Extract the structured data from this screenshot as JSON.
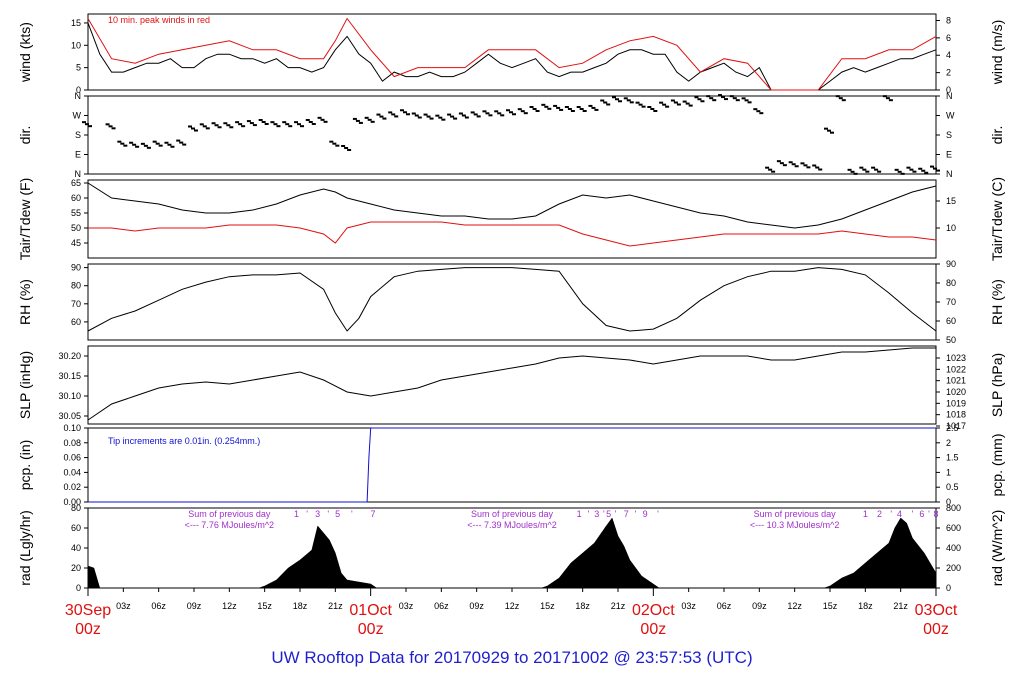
{
  "footer_title": "UW Rooftop Data for 20170929  to  20171002 @ 23:57:53  (UTC)",
  "colors": {
    "black": "#000000",
    "red": "#e01010",
    "blue": "#1010d0",
    "purple": "#a030c8",
    "date": "#e01010"
  },
  "x_axis": {
    "hour_ticks": [
      "03z",
      "06z",
      "09z",
      "12z",
      "15z",
      "18z",
      "21z",
      "03z",
      "06z",
      "09z",
      "12z",
      "15z",
      "18z",
      "21z",
      "03z",
      "06z",
      "09z",
      "12z",
      "15z",
      "18z",
      "21z"
    ],
    "hour_positions_h": [
      3,
      6,
      9,
      12,
      15,
      18,
      21,
      27,
      30,
      33,
      36,
      39,
      42,
      45,
      51,
      54,
      57,
      60,
      63,
      66,
      69
    ],
    "day_labels": [
      {
        "date": "30Sep",
        "time": "00z",
        "h": 0
      },
      {
        "date": "01Oct",
        "time": "00z",
        "h": 24
      },
      {
        "date": "02Oct",
        "time": "00z",
        "h": 48
      },
      {
        "date": "03Oct",
        "time": "00z",
        "h": 72
      }
    ],
    "range_h": [
      0,
      72
    ]
  },
  "chart_data": [
    {
      "type": "line",
      "panel": "wind",
      "ylabel": "wind (kts)",
      "ylabel_right": "wind (m/s)",
      "ylim": [
        0,
        17
      ],
      "yticks": [
        0,
        5,
        10,
        15
      ],
      "yticks_right": [
        0,
        2,
        4,
        6,
        8
      ],
      "annotation": "10 min. peak winds in red",
      "series": [
        {
          "color": "black",
          "x": [
            0,
            1,
            2,
            3,
            4,
            5,
            6,
            7,
            8,
            9,
            10,
            11,
            12,
            13,
            14,
            15,
            16,
            17,
            18,
            19,
            20,
            21,
            22,
            23,
            24,
            25,
            26,
            27,
            28,
            29,
            30,
            31,
            32,
            33,
            34,
            35,
            36,
            37,
            38,
            39,
            40,
            41,
            42,
            43,
            44,
            45,
            46,
            47,
            48,
            49,
            50,
            51,
            52,
            53,
            54,
            55,
            56,
            57,
            58,
            59,
            60,
            61,
            62,
            63,
            64,
            65,
            66,
            67,
            68,
            69,
            70,
            71,
            72
          ],
          "values": [
            15,
            8,
            4,
            4,
            5,
            6,
            6,
            7,
            5,
            5,
            7,
            8,
            8,
            7,
            7,
            6,
            7,
            5,
            5,
            4,
            5,
            9,
            12,
            8,
            6,
            2,
            4,
            3,
            3,
            4,
            3,
            3,
            4,
            6,
            8,
            6,
            5,
            6,
            7,
            4,
            3,
            4,
            4,
            5,
            6,
            8,
            9,
            9,
            8,
            8,
            4,
            2,
            4,
            5,
            6,
            4,
            3,
            5,
            0,
            0,
            0,
            0,
            0,
            2,
            4,
            5,
            4,
            5,
            6,
            7,
            7,
            8,
            9
          ]
        },
        {
          "name": "10 min. peak winds",
          "color": "red",
          "x": [
            0,
            2,
            4,
            6,
            8,
            10,
            12,
            14,
            16,
            18,
            20,
            21,
            22,
            24,
            26,
            28,
            30,
            32,
            34,
            36,
            38,
            40,
            42,
            44,
            46,
            48,
            50,
            52,
            54,
            56,
            58,
            60,
            62,
            64,
            66,
            68,
            70,
            72
          ],
          "values": [
            16,
            7,
            6,
            8,
            9,
            10,
            11,
            9,
            9,
            7,
            7,
            11,
            16,
            9,
            3,
            5,
            5,
            5,
            9,
            9,
            9,
            5,
            6,
            9,
            11,
            12,
            10,
            4,
            7,
            6,
            0,
            0,
            0,
            7,
            7,
            9,
            9,
            12
          ]
        }
      ]
    },
    {
      "type": "scatter",
      "panel": "dir",
      "ylabel": "dir.",
      "ylabel_right": "dir.",
      "ylim": [
        0,
        360
      ],
      "yticks_labels": [
        "N",
        "E",
        "S",
        "W",
        "N"
      ],
      "yticks_values": [
        0,
        90,
        180,
        270,
        360
      ],
      "x": [
        0,
        2,
        3,
        4,
        5,
        6,
        7,
        8,
        9,
        10,
        11,
        12,
        13,
        14,
        15,
        16,
        17,
        18,
        19,
        20,
        21,
        22,
        23,
        24,
        25,
        26,
        27,
        28,
        29,
        30,
        31,
        32,
        33,
        34,
        35,
        36,
        37,
        38,
        39,
        40,
        41,
        42,
        43,
        44,
        45,
        46,
        47,
        48,
        49,
        50,
        51,
        52,
        53,
        54,
        55,
        56,
        57,
        58,
        59,
        60,
        61,
        62,
        63,
        64,
        65,
        66,
        67,
        68,
        69,
        70,
        71,
        72
      ],
      "values": [
        230,
        220,
        140,
        135,
        130,
        140,
        135,
        145,
        210,
        220,
        225,
        225,
        230,
        235,
        240,
        230,
        230,
        230,
        240,
        250,
        140,
        120,
        245,
        250,
        265,
        275,
        285,
        270,
        265,
        260,
        265,
        270,
        275,
        280,
        280,
        285,
        290,
        300,
        310,
        305,
        300,
        300,
        305,
        330,
        345,
        340,
        320,
        300,
        320,
        330,
        325,
        345,
        350,
        355,
        350,
        340,
        290,
        20,
        50,
        45,
        40,
        30,
        200,
        350,
        10,
        20,
        20,
        350,
        10,
        20,
        15,
        25
      ]
    },
    {
      "type": "line",
      "panel": "temp",
      "ylabel": "Tair/Tdew (F)",
      "ylabel_right": "Tair/Tdew (C)",
      "ylim": [
        40,
        66
      ],
      "yticks": [
        45,
        50,
        55,
        60,
        65
      ],
      "yticks_right": [
        10,
        15
      ],
      "series": [
        {
          "name": "Tair",
          "color": "black",
          "x": [
            0,
            2,
            4,
            6,
            8,
            10,
            12,
            14,
            16,
            18,
            20,
            21,
            22,
            24,
            26,
            28,
            30,
            32,
            34,
            36,
            38,
            40,
            42,
            44,
            46,
            48,
            50,
            52,
            54,
            56,
            58,
            60,
            62,
            64,
            66,
            68,
            70,
            72
          ],
          "values": [
            65,
            60,
            59,
            58,
            56,
            55,
            55,
            56,
            58,
            61,
            63,
            62,
            60,
            58,
            56,
            55,
            54,
            54,
            53,
            53,
            54,
            58,
            61,
            60,
            61,
            59,
            57,
            55,
            54,
            52,
            51,
            50,
            51,
            53,
            56,
            59,
            62,
            64
          ]
        },
        {
          "name": "Tdew",
          "color": "red",
          "x": [
            0,
            2,
            4,
            6,
            8,
            10,
            12,
            14,
            16,
            18,
            20,
            21,
            22,
            24,
            26,
            28,
            30,
            32,
            34,
            36,
            38,
            40,
            42,
            44,
            46,
            48,
            50,
            52,
            54,
            56,
            58,
            60,
            62,
            64,
            66,
            68,
            70,
            72
          ],
          "values": [
            50,
            50,
            49,
            50,
            50,
            50,
            51,
            51,
            51,
            50,
            48,
            45,
            50,
            52,
            52,
            52,
            52,
            51,
            51,
            51,
            51,
            51,
            48,
            46,
            44,
            45,
            46,
            47,
            48,
            48,
            48,
            48,
            48,
            49,
            48,
            47,
            47,
            46
          ]
        }
      ]
    },
    {
      "type": "line",
      "panel": "rh",
      "ylabel": "RH (%)",
      "ylabel_right": "RH (%)",
      "ylim": [
        50,
        92
      ],
      "yticks": [
        60,
        70,
        80,
        90
      ],
      "yticks_right": [
        50,
        60,
        70,
        80,
        90
      ],
      "series": [
        {
          "color": "black",
          "x": [
            0,
            2,
            4,
            6,
            8,
            10,
            12,
            14,
            16,
            18,
            20,
            21,
            22,
            23,
            24,
            26,
            28,
            30,
            32,
            34,
            36,
            38,
            40,
            42,
            44,
            46,
            48,
            50,
            52,
            54,
            56,
            58,
            60,
            62,
            64,
            66,
            68,
            70,
            72
          ],
          "values": [
            55,
            62,
            66,
            72,
            78,
            82,
            85,
            86,
            86,
            87,
            78,
            65,
            55,
            62,
            74,
            85,
            88,
            89,
            90,
            90,
            90,
            89,
            88,
            70,
            58,
            55,
            56,
            62,
            72,
            80,
            85,
            88,
            88,
            90,
            89,
            86,
            76,
            65,
            55
          ]
        }
      ]
    },
    {
      "type": "line",
      "panel": "slp",
      "ylabel": "SLP (inHg)",
      "ylabel_right": "SLP (hPa)",
      "ylim": [
        30.03,
        30.225
      ],
      "yticks": [
        30.05,
        30.1,
        30.15,
        30.2
      ],
      "yticks_right": [
        1017,
        1018,
        1019,
        1020,
        1021,
        1022,
        1023
      ],
      "series": [
        {
          "color": "black",
          "x": [
            0,
            2,
            4,
            6,
            8,
            10,
            12,
            14,
            16,
            18,
            20,
            22,
            24,
            26,
            28,
            30,
            32,
            34,
            36,
            38,
            40,
            42,
            44,
            46,
            48,
            50,
            52,
            54,
            56,
            58,
            60,
            62,
            64,
            66,
            68,
            70,
            72
          ],
          "values": [
            30.04,
            30.08,
            30.1,
            30.12,
            30.13,
            30.135,
            30.13,
            30.14,
            30.15,
            30.16,
            30.14,
            30.11,
            30.1,
            30.11,
            30.12,
            30.14,
            30.15,
            30.16,
            30.17,
            30.18,
            30.195,
            30.2,
            30.195,
            30.19,
            30.18,
            30.19,
            30.2,
            30.2,
            30.2,
            30.19,
            30.19,
            30.2,
            30.21,
            30.21,
            30.215,
            30.22,
            30.22
          ]
        }
      ]
    },
    {
      "type": "line",
      "panel": "pcp",
      "ylabel": "pcp. (in)",
      "ylabel_right": "pcp. (mm)",
      "ylim": [
        0,
        0.1
      ],
      "yticks": [
        0,
        0.02,
        0.04,
        0.06,
        0.08,
        0.1
      ],
      "yticks_right": [
        0,
        0.5,
        1,
        1.5,
        2,
        2.5
      ],
      "annotation": "Tip increments are 0.01in. (0.254mm.)",
      "series": [
        {
          "color": "blue",
          "x": [
            0,
            23.7,
            23.85,
            24,
            72
          ],
          "values": [
            0,
            0,
            0.06,
            0.1,
            0.1
          ]
        }
      ]
    },
    {
      "type": "area",
      "panel": "rad",
      "ylabel": "rad (Lgly/hr)",
      "ylabel_right": "rad (W/m^2)",
      "ylim": [
        0,
        80
      ],
      "yticks": [
        0,
        20,
        40,
        60,
        80
      ],
      "yticks_right": [
        0,
        200,
        400,
        600,
        800
      ],
      "series": [
        {
          "color": "black",
          "x": [
            0,
            0.5,
            1,
            14.5,
            15,
            16,
            17,
            18,
            19,
            19.5,
            20,
            20.5,
            21,
            21.5,
            22,
            23,
            24,
            24.5,
            38.5,
            39,
            40,
            41,
            42,
            43,
            44,
            44.5,
            45,
            45.5,
            46,
            47,
            48,
            48.5,
            62.5,
            63,
            64,
            65,
            66,
            67,
            68,
            68.5,
            69,
            69.5,
            70,
            71,
            72
          ],
          "values": [
            22,
            20,
            0,
            0,
            2,
            8,
            20,
            28,
            38,
            62,
            55,
            48,
            35,
            15,
            8,
            6,
            4,
            0,
            0,
            2,
            10,
            25,
            35,
            45,
            62,
            70,
            52,
            42,
            28,
            12,
            4,
            0,
            0,
            2,
            10,
            15,
            25,
            35,
            45,
            60,
            70,
            65,
            50,
            35,
            15
          ]
        }
      ],
      "annotations": [
        {
          "lines": [
            "Sum of previous day",
            "<--- 7.76 MJoules/m^2"
          ],
          "h": 12
        },
        {
          "lines": [
            "Sum of previous day",
            "<--- 7.39 MJoules/m^2"
          ],
          "h": 36
        },
        {
          "lines": [
            "Sum of previous day",
            "<--- 10.3 MJoules/m^2"
          ],
          "h": 60
        }
      ],
      "hour_markers": [
        {
          "label": "1",
          "h": 17.7
        },
        {
          "label": "'",
          "h": 18.6
        },
        {
          "label": "3",
          "h": 19.5
        },
        {
          "label": "'",
          "h": 20.4
        },
        {
          "label": "5",
          "h": 21.2
        },
        {
          "label": "'",
          "h": 22.4
        },
        {
          "label": "7",
          "h": 24.2
        },
        {
          "label": "1",
          "h": 41.7
        },
        {
          "label": "'",
          "h": 42.5
        },
        {
          "label": "3",
          "h": 43.2
        },
        {
          "label": "'",
          "h": 43.8
        },
        {
          "label": "5",
          "h": 44.2
        },
        {
          "label": "'",
          "h": 44.8
        },
        {
          "label": "7",
          "h": 45.7
        },
        {
          "label": "'",
          "h": 46.5
        },
        {
          "label": "9",
          "h": 47.3
        },
        {
          "label": "'",
          "h": 48.4
        },
        {
          "label": "1",
          "h": 66.0
        },
        {
          "label": "2",
          "h": 67.2
        },
        {
          "label": "'",
          "h": 68.2
        },
        {
          "label": "4",
          "h": 68.9
        },
        {
          "label": "'",
          "h": 70.0
        },
        {
          "label": "6",
          "h": 70.8
        },
        {
          "label": "'",
          "h": 71.4
        },
        {
          "label": "8",
          "h": 72.0
        }
      ]
    }
  ]
}
